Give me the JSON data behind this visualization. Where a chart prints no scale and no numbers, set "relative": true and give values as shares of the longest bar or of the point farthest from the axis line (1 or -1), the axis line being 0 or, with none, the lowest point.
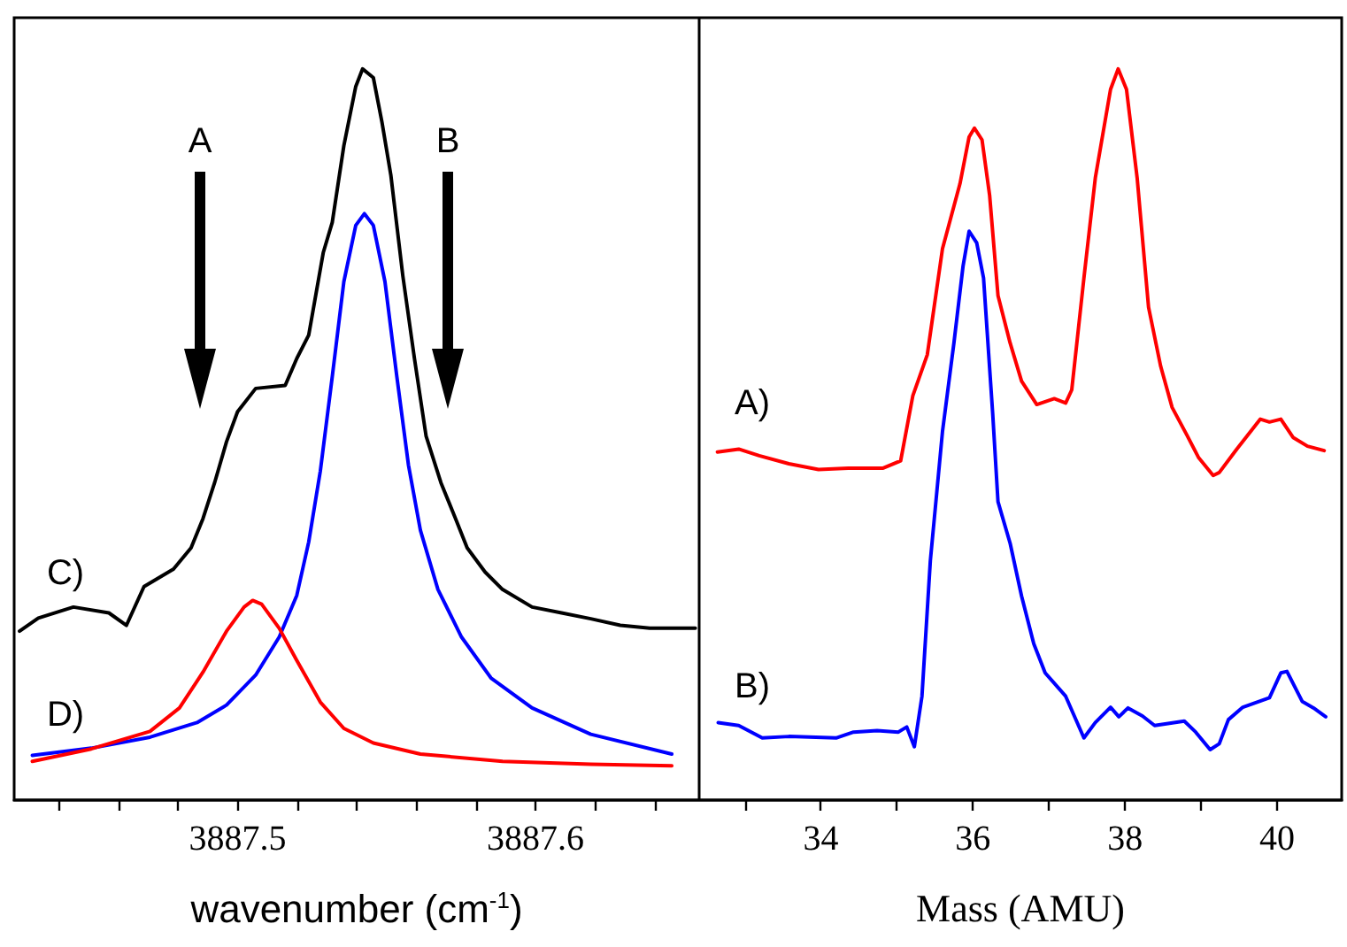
{
  "chart_data": [
    {
      "type": "line",
      "relative": true,
      "xlabel": "wavenumber (cm$^{-1}$)",
      "xlim": [
        3887.425,
        3887.655
      ],
      "xticks": [
        {
          "value": 3887.44,
          "label": null
        },
        {
          "value": 3887.46,
          "label": null
        },
        {
          "value": 3887.48,
          "label": null
        },
        3887.5,
        {
          "value": 3887.52,
          "label": null
        },
        {
          "value": 3887.54,
          "label": null
        },
        {
          "value": 3887.56,
          "label": null
        },
        {
          "value": 3887.58,
          "label": null
        },
        3887.6,
        {
          "value": 3887.62,
          "label": null
        },
        {
          "value": 3887.64,
          "label": null
        }
      ],
      "tick_labels": "x",
      "marker": "none",
      "line_style": "solid",
      "annotations": [
        "A",
        "B",
        "C)",
        "D)"
      ],
      "series": [
        {
          "color": "#000000",
          "x": [
            3887.4268,
            3887.4331,
            3887.4449,
            3887.4568,
            3887.4627,
            3887.4686,
            3887.4785,
            3887.4844,
            3887.4884,
            3887.4923,
            3887.4963,
            3887.5,
            3887.5061,
            3887.516,
            3887.5199,
            3887.5239,
            3887.5288,
            3887.5318,
            3887.5357,
            3887.5397,
            3887.542,
            3887.5456,
            3887.5485,
            3887.5515,
            3887.5555,
            3887.5594,
            3887.5633,
            3887.5683,
            3887.5732,
            3887.5771,
            3887.5831,
            3887.589,
            3887.5989,
            3887.6088,
            3887.6186,
            3887.6285,
            3887.6384,
            3887.6537
          ],
          "values": [
            0.231,
            0.249,
            0.264,
            0.256,
            0.239,
            0.292,
            0.316,
            0.345,
            0.385,
            0.434,
            0.49,
            0.531,
            0.563,
            0.567,
            0.604,
            0.636,
            0.749,
            0.79,
            0.895,
            0.976,
            1.0,
            0.988,
            0.927,
            0.854,
            0.717,
            0.604,
            0.498,
            0.434,
            0.385,
            0.345,
            0.312,
            0.288,
            0.264,
            0.256,
            0.248,
            0.239,
            0.235,
            0.235
          ]
        },
        {
          "color": "#0000ff",
          "x": [
            3887.4311,
            3887.4509,
            3887.4706,
            3887.4864,
            3887.4963,
            3887.5061,
            3887.514,
            3887.5199,
            3887.5239,
            3887.5278,
            3887.5318,
            3887.5357,
            3887.5397,
            3887.5426,
            3887.5456,
            3887.5495,
            3887.5535,
            3887.5574,
            3887.5614,
            3887.5673,
            3887.5752,
            3887.5851,
            3887.5989,
            3887.6186,
            3887.6458
          ],
          "values": [
            0.061,
            0.071,
            0.086,
            0.106,
            0.13,
            0.171,
            0.223,
            0.28,
            0.353,
            0.45,
            0.579,
            0.709,
            0.786,
            0.802,
            0.786,
            0.709,
            0.579,
            0.458,
            0.369,
            0.288,
            0.223,
            0.167,
            0.126,
            0.09,
            0.063
          ]
        },
        {
          "color": "#ff0000",
          "x": [
            3887.4311,
            3887.4509,
            3887.4706,
            3887.4805,
            3887.4884,
            3887.4963,
            3887.5022,
            3887.5051,
            3887.5081,
            3887.514,
            3887.5199,
            3887.5278,
            3887.5357,
            3887.5456,
            3887.5614,
            3887.589,
            3887.6186,
            3887.6458
          ],
          "values": [
            0.053,
            0.07,
            0.094,
            0.126,
            0.175,
            0.231,
            0.264,
            0.273,
            0.268,
            0.235,
            0.191,
            0.134,
            0.098,
            0.078,
            0.063,
            0.053,
            0.049,
            0.047
          ]
        }
      ]
    },
    {
      "type": "line",
      "relative": true,
      "xlabel": "Mass (AMU)",
      "xlim": [
        32.4,
        40.85
      ],
      "xticks": [
        {
          "value": 33,
          "label": null
        },
        34,
        {
          "value": 35,
          "label": null
        },
        36,
        {
          "value": 37,
          "label": null
        },
        38,
        {
          "value": 39,
          "label": null
        },
        40
      ],
      "tick_labels": "x",
      "marker": "none",
      "line_style": "solid",
      "annotations": [
        "A)",
        "B)"
      ],
      "series": [
        {
          "color": "#ff0000",
          "x": [
            32.64,
            32.92,
            33.19,
            33.58,
            33.97,
            34.36,
            34.82,
            35.05,
            35.21,
            35.4,
            35.6,
            35.83,
            35.95,
            36.02,
            36.12,
            36.22,
            36.33,
            36.49,
            36.64,
            36.84,
            37.07,
            37.22,
            37.3,
            37.46,
            37.61,
            37.81,
            37.91,
            38.02,
            38.16,
            38.31,
            38.47,
            38.62,
            38.81,
            38.97,
            39.16,
            39.24,
            39.47,
            39.78,
            39.9,
            40.05,
            40.21,
            40.4,
            40.62
          ],
          "values": [
            0.476,
            0.48,
            0.471,
            0.46,
            0.452,
            0.454,
            0.454,
            0.464,
            0.553,
            0.609,
            0.754,
            0.843,
            0.907,
            0.919,
            0.903,
            0.827,
            0.69,
            0.625,
            0.573,
            0.541,
            0.549,
            0.543,
            0.561,
            0.714,
            0.851,
            0.972,
            1.0,
            0.972,
            0.851,
            0.674,
            0.593,
            0.537,
            0.5,
            0.468,
            0.444,
            0.448,
            0.48,
            0.521,
            0.517,
            0.521,
            0.496,
            0.484,
            0.478
          ]
        },
        {
          "color": "#0000ff",
          "x": [
            32.65,
            32.92,
            33.23,
            33.58,
            34.2,
            34.43,
            34.74,
            35.02,
            35.13,
            35.23,
            35.33,
            35.44,
            35.6,
            35.75,
            35.87,
            35.95,
            36.05,
            36.14,
            36.26,
            36.33,
            36.49,
            36.64,
            36.8,
            36.95,
            37.22,
            37.46,
            37.61,
            37.81,
            37.92,
            38.04,
            38.23,
            38.39,
            38.78,
            38.93,
            39.12,
            39.24,
            39.36,
            39.55,
            39.9,
            40.05,
            40.13,
            40.33,
            40.48,
            40.64
          ],
          "values": [
            0.106,
            0.102,
            0.085,
            0.087,
            0.085,
            0.093,
            0.095,
            0.093,
            0.1,
            0.073,
            0.142,
            0.327,
            0.504,
            0.625,
            0.73,
            0.778,
            0.762,
            0.714,
            0.529,
            0.408,
            0.351,
            0.279,
            0.214,
            0.174,
            0.142,
            0.085,
            0.106,
            0.127,
            0.114,
            0.126,
            0.115,
            0.102,
            0.108,
            0.093,
            0.069,
            0.077,
            0.11,
            0.127,
            0.14,
            0.174,
            0.176,
            0.135,
            0.126,
            0.114
          ]
        }
      ]
    }
  ]
}
